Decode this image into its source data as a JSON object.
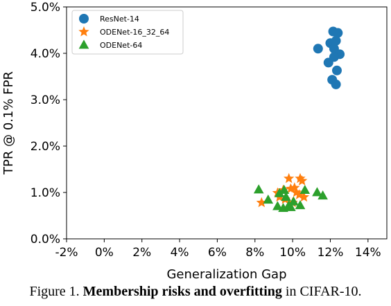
{
  "caption": {
    "prefix": "Figure 1.",
    "bold": "Membership risks and overfitting",
    "suffix": "in CIFAR-10."
  },
  "colors": {
    "ResNet-14": "#1f77b4",
    "ODENet-16_32_64": "#ff7f0e",
    "ODENet-64": "#2ca02c"
  },
  "chart_data": {
    "type": "scatter",
    "title": "",
    "xlabel": "Generalization Gap",
    "ylabel": "TPR @ 0.1% FPR",
    "xlim": [
      -2,
      15
    ],
    "ylim": [
      0,
      5
    ],
    "x_ticks": [
      -2,
      0,
      2,
      4,
      6,
      8,
      10,
      12,
      14
    ],
    "x_tick_labels": [
      "-2%",
      "0%",
      "2%",
      "4%",
      "6%",
      "8%",
      "10%",
      "12%",
      "14%"
    ],
    "y_ticks": [
      0,
      1,
      2,
      3,
      4,
      5
    ],
    "y_tick_labels": [
      "0.0%",
      "1.0%",
      "2.0%",
      "3.0%",
      "4.0%",
      "5.0%"
    ],
    "grid": false,
    "legend_position": "top-left",
    "series": [
      {
        "name": "ResNet-14",
        "marker": "circle",
        "points": [
          [
            12.15,
            4.47
          ],
          [
            12.4,
            4.44
          ],
          [
            12.0,
            4.22
          ],
          [
            12.3,
            4.27
          ],
          [
            12.2,
            4.1
          ],
          [
            12.5,
            3.98
          ],
          [
            11.35,
            4.1
          ],
          [
            11.9,
            3.8
          ],
          [
            12.35,
            3.63
          ],
          [
            12.1,
            3.43
          ],
          [
            12.3,
            3.33
          ],
          [
            12.2,
            3.92
          ]
        ]
      },
      {
        "name": "ODENet-16_32_64",
        "marker": "star",
        "points": [
          [
            8.35,
            0.78
          ],
          [
            9.2,
            0.99
          ],
          [
            9.5,
            1.05
          ],
          [
            9.8,
            1.3
          ],
          [
            10.1,
            1.1
          ],
          [
            10.4,
            1.3
          ],
          [
            10.5,
            1.25
          ],
          [
            10.2,
            1.0
          ],
          [
            9.6,
            0.85
          ],
          [
            10.0,
            0.78
          ],
          [
            10.6,
            0.9
          ],
          [
            9.9,
            1.08
          ],
          [
            10.35,
            0.95
          ],
          [
            9.3,
            0.9
          ]
        ]
      },
      {
        "name": "ODENet-64",
        "marker": "triangle",
        "points": [
          [
            8.2,
            1.06
          ],
          [
            8.7,
            0.84
          ],
          [
            9.3,
            0.98
          ],
          [
            9.55,
            1.05
          ],
          [
            9.2,
            0.7
          ],
          [
            9.5,
            0.66
          ],
          [
            9.8,
            0.72
          ],
          [
            10.05,
            0.8
          ],
          [
            10.4,
            0.72
          ],
          [
            10.65,
            1.05
          ],
          [
            11.3,
            1.0
          ],
          [
            11.6,
            0.93
          ],
          [
            9.9,
            0.68
          ],
          [
            9.65,
            0.9
          ]
        ]
      }
    ]
  }
}
